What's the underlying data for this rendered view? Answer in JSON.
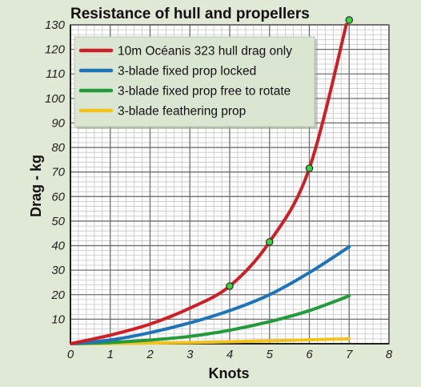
{
  "chart_data": {
    "type": "line",
    "title": "Resistance of hull and propellers",
    "xlabel": "Knots",
    "ylabel": "Drag - kg",
    "xlim": [
      0,
      8
    ],
    "ylim": [
      0,
      130
    ],
    "xticks": [
      0,
      1,
      2,
      3,
      4,
      5,
      6,
      7,
      8
    ],
    "yticks": [
      10,
      20,
      30,
      40,
      50,
      60,
      70,
      80,
      90,
      100,
      110,
      120,
      130
    ],
    "grid": true,
    "legend_position": "top-left",
    "x": [
      0,
      1,
      2,
      3,
      4,
      5,
      6,
      7
    ],
    "series": [
      {
        "name": "10m Océanis 323 hull drag only",
        "color": "#cc1f26",
        "values": [
          0,
          3.5,
          8,
          14.5,
          23.5,
          41.5,
          71.5,
          135
        ]
      },
      {
        "name": "3-blade fixed prop locked",
        "color": "#1f74b8",
        "values": [
          0,
          1.5,
          4.5,
          8.5,
          13.5,
          20,
          29,
          39.5
        ]
      },
      {
        "name": "3-blade fixed prop free to rotate",
        "color": "#239a3c",
        "values": [
          0,
          0.5,
          1.5,
          3,
          5.5,
          9,
          13.5,
          19.5
        ]
      },
      {
        "name": "3-blade feathering prop",
        "color": "#f2c31c",
        "values": [
          0,
          0.1,
          0.3,
          0.5,
          0.8,
          1.2,
          1.6,
          2
        ]
      }
    ],
    "markers": [
      {
        "series": "10m Océanis 323 hull drag only",
        "x": 4,
        "y": 23.5
      },
      {
        "series": "10m Océanis 323 hull drag only",
        "x": 5,
        "y": 41.5
      },
      {
        "series": "10m Océanis 323 hull drag only",
        "x": 6,
        "y": 71.5
      },
      {
        "series": "10m Océanis 323 hull drag only",
        "x": 7,
        "y": 135
      }
    ],
    "marker_color": "#3ecf3e"
  }
}
